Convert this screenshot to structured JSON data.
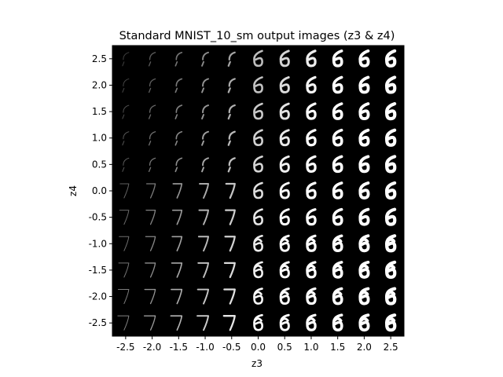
{
  "chart_data": {
    "type": "heatmap",
    "title": "Standard MNIST_10_sm output images (z3 & z4)",
    "xlabel": "z3",
    "ylabel": "z4",
    "x_ticks": [
      -2.5,
      -2.0,
      -1.5,
      -1.0,
      -0.5,
      0.0,
      0.5,
      1.0,
      1.5,
      2.0,
      2.5
    ],
    "x_tick_labels": [
      "-2.5",
      "-2.0",
      "-1.5",
      "-1.0",
      "-0.5",
      "0.0",
      "0.5",
      "1.0",
      "1.5",
      "2.0",
      "2.5"
    ],
    "y_ticks": [
      2.5,
      2.0,
      1.5,
      1.0,
      0.5,
      0.0,
      -0.5,
      -1.0,
      -1.5,
      -2.0,
      -2.5
    ],
    "y_tick_labels": [
      "2.5",
      "2.0",
      "1.5",
      "1.0",
      "0.5",
      "0.0",
      "-0.5",
      "-1.0",
      "-1.5",
      "-2.0",
      "-2.5"
    ],
    "xlim": [
      -2.75,
      2.75
    ],
    "ylim": [
      -2.75,
      2.75
    ],
    "background_color": "#000000",
    "glyph_color": "#ffffff",
    "description_of_cells": "11x11 grid of generated digit images; left columns faint 7-like strokes, right columns bold 6 (top) to 0/6-loop shapes (bottom)"
  }
}
